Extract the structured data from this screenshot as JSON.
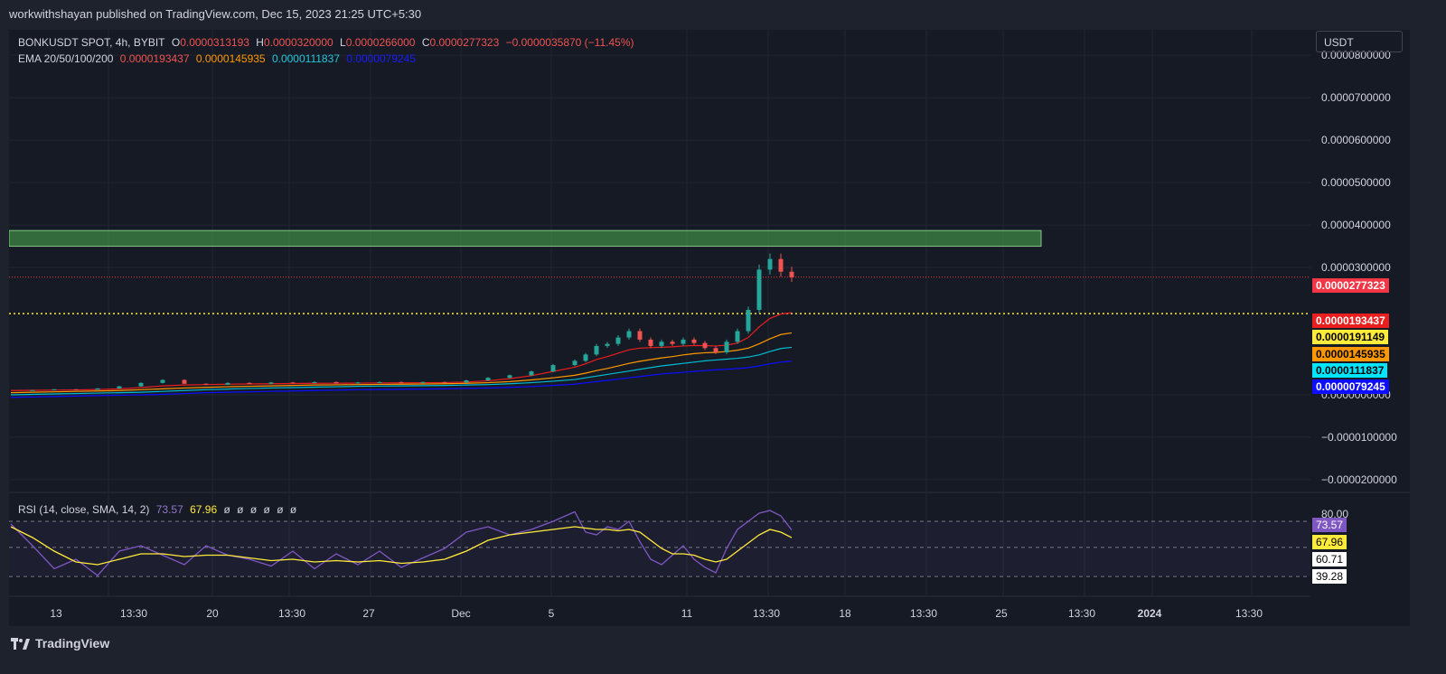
{
  "header": {
    "published_by": "workwithshayan published on TradingView.com, Dec 15, 2023 21:25 UTC+5:30"
  },
  "legend": {
    "symbol": "BONKUSDT SPOT, 4h, BYBIT",
    "o_label": "O",
    "o": "0.0000313193",
    "h_label": "H",
    "h": "0.0000320000",
    "l_label": "L",
    "l": "0.0000266000",
    "c_label": "C",
    "c": "0.0000277323",
    "change": "−0.0000035870 (−11.45%)",
    "ema_label": "EMA 20/50/100/200",
    "ema20": "0.0000193437",
    "ema50": "0.0000145935",
    "ema100": "0.0000111837",
    "ema200": "0.0000079245"
  },
  "rsi_legend": {
    "label": "RSI (14, close, SMA, 14, 2)",
    "rsi": "73.57",
    "sma": "67.96",
    "extras": [
      "ø",
      "ø",
      "ø",
      "ø",
      "ø",
      "ø"
    ]
  },
  "currency": "USDT",
  "price_labels": {
    "last": "0.0000277323",
    "ema20": "0.0000193437",
    "hline": "0.0000191149",
    "ema50": "0.0000145935",
    "ema100": "0.0000111837",
    "ema200": "0.0000079245"
  },
  "rsi_labels": {
    "rsi": "73.57",
    "sma": "67.96",
    "upper": "60.71",
    "lower": "39.28"
  },
  "colors": {
    "up": "#26a69a",
    "down": "#ef5350",
    "ema20": "#e91e1e",
    "ema50": "#ff9800",
    "ema100": "#00bcd4",
    "ema200": "#0d0dff",
    "rsi": "#7e57c2",
    "rsi_sma": "#ffeb3b",
    "zone": "#4caf50"
  },
  "brand": "TradingView",
  "chart_data": {
    "type": "candlestick",
    "price_axis": {
      "ticks": [
        "0.0000800000",
        "0.0000700000",
        "0.0000600000",
        "0.0000500000",
        "0.0000400000",
        "0.0000300000",
        "0.0000000000",
        "−0.0000100000",
        "−0.0000200000"
      ],
      "tick_values": [
        8e-05,
        7e-05,
        6e-05,
        5e-05,
        4e-05,
        3e-05,
        0,
        -1e-05,
        -2e-05
      ],
      "ylim": [
        -2.3e-05,
        8.6e-05
      ]
    },
    "time_axis": {
      "labels": [
        "13",
        "13:30",
        "20",
        "13:30",
        "27",
        "Dec",
        "5",
        "11",
        "13:30",
        "18",
        "13:30",
        "25",
        "13:30",
        "2024",
        "13:30"
      ]
    },
    "horizontal_zone": {
      "low": 3.5e-05,
      "high": 3.87e-05,
      "start_day": 0,
      "end_day": 23.0
    },
    "horizontal_line": {
      "value": 1.91149e-05,
      "style": "dotted",
      "color": "#ffeb3b"
    },
    "last_price_line": {
      "value": 2.77323e-05,
      "style": "dotted"
    },
    "price_series_days": [
      0,
      1,
      2,
      3,
      4,
      5,
      6,
      7,
      8,
      9,
      10,
      11,
      12,
      13,
      14,
      15,
      16,
      17,
      18,
      19,
      20,
      21,
      22,
      23,
      24,
      25,
      26,
      26.5,
      27,
      27.5,
      28,
      28.5,
      29,
      29.5,
      30,
      30.5,
      31,
      31.5,
      32,
      32.5,
      33,
      33.5,
      34,
      34.5,
      35,
      35.5,
      36
    ],
    "close": [
      1e-06,
      1.1e-06,
      1.3e-06,
      1.2e-06,
      1.5e-06,
      2e-06,
      2.8e-06,
      3.5e-06,
      2.6e-06,
      2.4e-06,
      2.8e-06,
      2.6e-06,
      2.9e-06,
      2.8e-06,
      3e-06,
      2.7e-06,
      2.9e-06,
      3e-06,
      2.8e-06,
      3e-06,
      2.9e-06,
      3.4e-06,
      4e-06,
      4.6e-06,
      5.5e-06,
      7e-06,
      8e-06,
      9.5e-06,
      1.15e-05,
      1.2e-05,
      1.35e-05,
      1.5e-05,
      1.3e-05,
      1.15e-05,
      1.25e-05,
      1.2e-05,
      1.3e-05,
      1.22e-05,
      1.1e-05,
      1e-05,
      1.25e-05,
      1.5e-05,
      2e-05,
      2.95e-05,
      3.2e-05,
      2.9e-05,
      2.77e-05
    ],
    "ema20": [
      1e-06,
      1.05e-06,
      1.1e-06,
      1.15e-06,
      1.25e-06,
      1.4e-06,
      1.7e-06,
      2.1e-06,
      2.3e-06,
      2.4e-06,
      2.5e-06,
      2.55e-06,
      2.6e-06,
      2.65e-06,
      2.7e-06,
      2.72e-06,
      2.75e-06,
      2.8e-06,
      2.82e-06,
      2.85e-06,
      2.88e-06,
      3e-06,
      3.3e-06,
      3.8e-06,
      4.5e-06,
      5.5e-06,
      6.5e-06,
      7.3e-06,
      8.3e-06,
      9e-06,
      9.8e-06,
      1.06e-05,
      1.1e-05,
      1.11e-05,
      1.12e-05,
      1.13e-05,
      1.15e-05,
      1.16e-05,
      1.16e-05,
      1.15e-05,
      1.17e-05,
      1.22e-05,
      1.35e-05,
      1.6e-05,
      1.8e-05,
      1.9e-05,
      1.93437e-05
    ],
    "ema50": [
      5e-07,
      6e-07,
      7e-07,
      8e-07,
      9e-07,
      1e-06,
      1.2e-06,
      1.4e-06,
      1.6e-06,
      1.75e-06,
      1.9e-06,
      2e-06,
      2.1e-06,
      2.2e-06,
      2.3e-06,
      2.35e-06,
      2.4e-06,
      2.45e-06,
      2.5e-06,
      2.55e-06,
      2.6e-06,
      2.7e-06,
      2.85e-06,
      3.1e-06,
      3.5e-06,
      4e-06,
      4.6e-06,
      5.1e-06,
      5.7e-06,
      6.2e-06,
      6.8e-06,
      7.4e-06,
      7.9e-06,
      8.3e-06,
      8.7e-06,
      9e-06,
      9.4e-06,
      9.7e-06,
      9.9e-06,
      1e-05,
      1.02e-05,
      1.05e-05,
      1.1e-05,
      1.2e-05,
      1.32e-05,
      1.42e-05,
      1.459e-05
    ],
    "ema100": [
      0,
      1e-07,
      2e-07,
      3e-07,
      4e-07,
      5e-07,
      6e-07,
      8e-07,
      1e-06,
      1.2e-06,
      1.35e-06,
      1.5e-06,
      1.6e-06,
      1.7e-06,
      1.8e-06,
      1.9e-06,
      2e-06,
      2.05e-06,
      2.1e-06,
      2.15e-06,
      2.2e-06,
      2.3e-06,
      2.4e-06,
      2.6e-06,
      2.85e-06,
      3.2e-06,
      3.6e-06,
      4e-06,
      4.4e-06,
      4.8e-06,
      5.2e-06,
      5.6e-06,
      6e-06,
      6.4e-06,
      6.8e-06,
      7.1e-06,
      7.4e-06,
      7.7e-06,
      8e-06,
      8.2e-06,
      8.4e-06,
      8.6e-06,
      8.9e-06,
      9.4e-06,
      1.02e-05,
      1.09e-05,
      1.118e-05
    ],
    "ema200": [
      -6e-07,
      -5e-07,
      -4e-07,
      -3e-07,
      -2e-07,
      -1e-07,
      0,
      1e-07,
      3e-07,
      5e-07,
      6e-07,
      7e-07,
      8e-07,
      9e-07,
      1e-06,
      1.1e-06,
      1.2e-06,
      1.25e-06,
      1.3e-06,
      1.35e-06,
      1.4e-06,
      1.5e-06,
      1.6e-06,
      1.75e-06,
      1.95e-06,
      2.2e-06,
      2.5e-06,
      2.8e-06,
      3.1e-06,
      3.4e-06,
      3.7e-06,
      4e-06,
      4.3e-06,
      4.6e-06,
      4.9e-06,
      5.1e-06,
      5.3e-06,
      5.5e-06,
      5.7e-06,
      5.9e-06,
      6e-06,
      6.2e-06,
      6.4e-06,
      6.8e-06,
      7.3e-06,
      7.7e-06,
      7.92e-06
    ],
    "rsi_panel": {
      "levels": [
        80,
        60.71,
        39.28
      ],
      "visible_tick": "80.00",
      "rsi_days": [
        0,
        1,
        2,
        3,
        4,
        5,
        6,
        7,
        8,
        9,
        10,
        11,
        12,
        13,
        14,
        15,
        16,
        17,
        18,
        19,
        20,
        21,
        22,
        23,
        24,
        25,
        26,
        26.5,
        27,
        27.5,
        28,
        28.5,
        29,
        29.5,
        30,
        30.5,
        31,
        31.5,
        32,
        32.5,
        33,
        33.5,
        34,
        34.5,
        35,
        35.5,
        36
      ],
      "rsi": [
        78,
        62,
        45,
        52,
        40,
        58,
        62,
        55,
        48,
        62,
        55,
        52,
        47,
        58,
        45,
        56,
        48,
        58,
        46,
        53,
        60,
        72,
        76,
        70,
        74,
        80,
        87,
        72,
        70,
        76,
        74,
        80,
        65,
        52,
        48,
        55,
        62,
        52,
        46,
        42,
        60,
        74,
        80,
        86,
        88,
        84,
        73.57
      ],
      "sma": [
        76,
        68,
        58,
        50,
        48,
        52,
        56,
        56,
        54,
        55,
        55,
        53,
        51,
        52,
        50,
        51,
        50,
        51,
        49,
        50,
        52,
        58,
        66,
        70,
        72,
        74,
        76,
        75,
        74,
        74,
        73,
        74,
        72,
        66,
        60,
        56,
        56,
        55,
        52,
        50,
        52,
        58,
        64,
        70,
        74,
        72,
        67.96
      ]
    }
  }
}
